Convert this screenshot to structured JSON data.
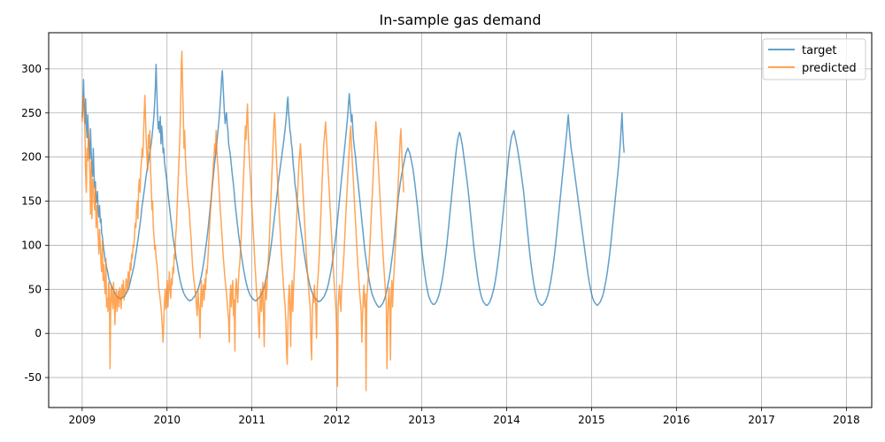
{
  "chart_data": {
    "type": "line",
    "title": "In-sample gas demand",
    "xlabel": "",
    "ylabel": "",
    "x_ticks": [
      "2009",
      "2010",
      "2011",
      "2012",
      "2013",
      "2014",
      "2015",
      "2016",
      "2017",
      "2018"
    ],
    "y_ticks": [
      "-50",
      "0",
      "50",
      "100",
      "150",
      "200",
      "250",
      "300"
    ],
    "xlim": [
      "2008-08-10",
      "2018-04-20"
    ],
    "ylim": [
      -84,
      341
    ],
    "grid": true,
    "legend_position": "top-right",
    "x_start": "2009-01-01",
    "x_step": "3 days",
    "series": [
      {
        "name": "target",
        "color": "#1f77b4",
        "opacity": 0.7,
        "values": [
          245,
          262,
          288,
          255,
          238,
          266,
          235,
          222,
          248,
          228,
          210,
          198,
          232,
          205,
          187,
          178,
          210,
          181,
          165,
          172,
          148,
          152,
          161,
          138,
          132,
          145,
          126,
          130,
          114,
          110,
          102,
          95,
          90,
          82,
          80,
          75,
          72,
          68,
          63,
          60,
          58,
          56,
          54,
          52,
          50,
          50,
          47,
          45,
          44,
          43,
          42,
          41,
          41,
          40,
          40,
          39,
          40,
          40,
          41,
          41,
          42,
          42,
          44,
          45,
          47,
          48,
          50,
          52,
          55,
          58,
          62,
          65,
          68,
          72,
          75,
          80,
          85,
          90,
          95,
          101,
          106,
          112,
          118,
          124,
          130,
          138,
          145,
          150,
          156,
          162,
          168,
          174,
          180,
          185,
          190,
          195,
          200,
          205,
          210,
          215,
          222,
          230,
          238,
          248,
          262,
          280,
          305,
          275,
          250,
          232,
          240,
          228,
          246,
          215,
          235,
          225,
          205,
          210,
          195,
          188,
          182,
          176,
          168,
          160,
          152,
          145,
          138,
          130,
          125,
          118,
          110,
          105,
          100,
          95,
          90,
          84,
          80,
          75,
          70,
          66,
          62,
          58,
          55,
          52,
          50,
          47,
          45,
          44,
          42,
          41,
          40,
          39,
          38,
          38,
          37,
          37,
          38,
          38,
          39,
          40,
          41,
          42,
          43,
          45,
          47,
          48,
          50,
          52,
          55,
          58,
          62,
          65,
          70,
          74,
          79,
          84,
          90,
          96,
          102,
          108,
          115,
          122,
          130,
          138,
          146,
          154,
          162,
          170,
          178,
          186,
          194,
          200,
          208,
          216,
          224,
          232,
          240,
          250,
          262,
          275,
          290,
          298,
          282,
          265,
          250,
          238,
          245,
          250,
          236,
          230,
          215,
          210,
          205,
          198,
          190,
          182,
          175,
          168,
          160,
          150,
          142,
          135,
          128,
          121,
          114,
          108,
          102,
          96,
          90,
          85,
          80,
          75,
          70,
          66,
          62,
          58,
          55,
          52,
          49,
          47,
          45,
          43,
          42,
          41,
          40,
          39,
          38,
          38,
          37,
          37,
          38,
          38,
          39,
          40,
          41,
          42,
          43,
          44,
          46,
          48,
          50,
          53,
          56,
          60,
          64,
          68,
          72,
          77,
          82,
          88,
          94,
          100,
          106,
          113,
          120,
          127,
          134,
          141,
          148,
          155,
          162,
          170,
          176,
          182,
          188,
          194,
          200,
          206,
          212,
          218,
          225,
          232,
          240,
          248,
          262,
          268,
          250,
          240,
          230,
          225,
          215,
          210,
          198,
          188,
          182,
          170,
          165,
          158,
          150,
          145,
          140,
          132,
          126,
          120,
          115,
          110,
          104,
          98,
          92,
          87,
          82,
          77,
          72,
          68,
          64,
          60,
          56,
          53,
          50,
          48,
          46,
          44,
          42,
          41,
          40,
          39,
          38,
          37,
          37,
          36,
          36,
          37,
          37,
          38,
          39,
          40,
          41,
          42,
          44,
          46,
          48,
          50,
          53,
          56,
          60,
          64,
          68,
          72,
          77,
          82,
          88,
          94,
          100,
          106,
          113,
          120,
          128,
          136,
          144,
          152,
          160,
          168,
          176,
          184,
          192,
          200,
          208,
          216,
          224,
          232,
          240,
          250,
          262,
          272,
          260,
          250,
          240,
          248,
          232,
          220,
          212,
          206,
          200,
          190,
          182,
          175,
          168,
          160,
          152,
          144,
          136,
          128,
          120,
          112,
          104,
          96,
          90,
          84,
          78,
          72,
          68,
          63,
          58,
          54,
          50,
          47,
          44,
          42,
          40,
          38,
          36,
          35,
          33,
          32,
          31,
          30,
          30,
          30,
          31,
          32,
          33,
          34,
          36,
          38,
          40,
          43,
          46,
          50,
          54,
          58,
          62,
          67,
          72,
          78,
          84,
          90,
          97,
          104,
          112,
          120,
          128,
          136,
          144,
          152,
          158,
          164,
          170,
          175,
          180,
          184,
          188,
          192,
          196,
          200,
          204,
          206,
          208,
          210,
          208,
          206,
          204,
          200,
          196,
          192,
          188,
          182,
          176,
          170,
          163,
          156,
          149,
          142,
          134,
          126,
          118,
          110,
          102,
          95,
          88,
          81,
          75,
          69,
          63,
          58,
          53,
          49,
          45,
          42,
          40,
          38,
          36,
          35,
          34,
          33,
          33,
          33,
          34,
          35,
          36,
          38,
          40,
          42,
          45,
          48,
          52,
          56,
          60,
          65,
          70,
          76,
          82,
          88,
          95,
          102,
          110,
          118,
          126,
          134,
          142,
          150,
          158,
          166,
          174,
          182,
          190,
          198,
          205,
          212,
          218,
          222,
          225,
          228,
          226,
          222,
          218,
          214,
          208,
          202,
          196,
          190,
          184,
          178,
          172,
          165,
          158,
          150,
          142,
          134,
          126,
          118,
          110,
          102,
          95,
          88,
          82,
          76,
          70,
          64,
          59,
          54,
          50,
          46,
          43,
          40,
          38,
          36,
          35,
          34,
          33,
          32,
          32,
          32,
          33,
          34,
          35,
          37,
          39,
          41,
          44,
          47,
          50,
          54,
          58,
          63,
          68,
          74,
          80,
          86,
          93,
          100,
          108,
          116,
          124,
          132,
          140,
          148,
          156,
          164,
          172,
          180,
          188,
          196,
          204,
          210,
          215,
          220,
          224,
          226,
          228,
          230,
          226,
          222,
          218,
          214,
          210,
          205,
          200,
          195,
          190,
          184,
          178,
          172,
          166,
          160,
          152,
          144,
          136,
          128,
          120,
          112,
          104,
          96,
          89,
          82,
          76,
          70,
          64,
          59,
          54,
          50,
          46,
          43,
          40,
          38,
          36,
          35,
          34,
          33,
          32,
          32,
          32,
          33,
          34,
          35,
          36,
          38,
          40,
          42,
          45,
          48,
          52,
          56,
          60,
          65,
          70,
          76,
          82,
          88,
          95,
          102,
          110,
          118,
          126,
          134,
          142,
          150,
          158,
          166,
          174,
          182,
          190,
          198,
          206,
          214,
          222,
          230,
          240,
          248,
          236,
          226,
          218,
          210,
          205,
          200,
          194,
          188,
          182,
          176,
          170,
          164,
          158,
          152,
          146,
          140,
          134,
          128,
          122,
          116,
          110,
          104,
          98,
          92,
          86,
          80,
          74,
          68,
          63,
          58,
          54,
          50,
          46,
          43,
          40,
          38,
          36,
          35,
          34,
          33,
          32,
          32,
          33,
          34,
          35,
          36,
          38,
          40,
          42,
          45,
          48,
          52,
          56,
          60,
          65,
          70,
          76,
          82,
          88,
          95,
          102,
          110,
          118,
          126,
          134,
          142,
          150,
          158,
          166,
          174,
          182,
          190,
          200,
          210,
          222,
          236,
          250,
          230,
          215,
          205
        ]
      },
      {
        "name": "predicted",
        "color": "#ff7f0e",
        "opacity": 0.7,
        "values": [
          240,
          255,
          270,
          250,
          230,
          180,
          160,
          210,
          196,
          230,
          200,
          182,
          135,
          195,
          130,
          175,
          170,
          150,
          140,
          165,
          120,
          145,
          125,
          110,
          90,
          118,
          100,
          80,
          70,
          105,
          60,
          78,
          55,
          45,
          85,
          30,
          40,
          25,
          58,
          50,
          -40,
          35,
          55,
          38,
          28,
          58,
          40,
          10,
          42,
          50,
          25,
          36,
          48,
          30,
          52,
          45,
          28,
          55,
          42,
          60,
          38,
          50,
          46,
          62,
          58,
          48,
          70,
          55,
          68,
          80,
          72,
          90,
          85,
          100,
          98,
          110,
          125,
          120,
          140,
          150,
          130,
          165,
          175,
          160,
          185,
          195,
          210,
          200,
          225,
          250,
          270,
          240,
          215,
          200,
          185,
          225,
          210,
          230,
          185,
          170,
          140,
          150,
          120,
          110,
          95,
          100,
          85,
          80,
          72,
          60,
          50,
          45,
          38,
          30,
          20,
          5,
          -10,
          12,
          35,
          50,
          28,
          42,
          60,
          30,
          48,
          70,
          50,
          40,
          62,
          55,
          75,
          68,
          90,
          85,
          110,
          120,
          140,
          160,
          180,
          200,
          220,
          250,
          300,
          320,
          280,
          250,
          210,
          230,
          200,
          185,
          170,
          160,
          150,
          145,
          135,
          120,
          110,
          95,
          80,
          70,
          62,
          55,
          48,
          42,
          30,
          20,
          50,
          35,
          25,
          -5,
          40,
          60,
          30,
          45,
          55,
          38,
          62,
          50,
          72,
          68,
          80,
          95,
          110,
          125,
          140,
          150,
          165,
          175,
          190,
          200,
          215,
          205,
          230,
          210,
          195,
          185,
          170,
          155,
          140,
          130,
          118,
          105,
          90,
          80,
          70,
          60,
          52,
          45,
          35,
          25,
          15,
          -10,
          40,
          55,
          30,
          48,
          60,
          20,
          38,
          -20,
          50,
          62,
          45,
          35,
          58,
          72,
          80,
          95,
          110,
          130,
          150,
          170,
          190,
          210,
          235,
          220,
          245,
          260,
          230,
          210,
          195,
          180,
          165,
          150,
          135,
          120,
          105,
          90,
          75,
          62,
          48,
          40,
          30,
          10,
          -5,
          35,
          50,
          25,
          40,
          58,
          20,
          -15,
          45,
          60,
          38,
          52,
          70,
          85,
          100,
          120,
          140,
          160,
          180,
          200,
          220,
          240,
          250,
          230,
          210,
          190,
          175,
          160,
          145,
          130,
          115,
          100,
          88,
          75,
          62,
          50,
          40,
          30,
          15,
          -20,
          -35,
          10,
          40,
          55,
          30,
          -15,
          45,
          60,
          25,
          50,
          68,
          82,
          100,
          120,
          140,
          160,
          180,
          195,
          205,
          215,
          200,
          185,
          170,
          155,
          140,
          125,
          110,
          95,
          82,
          70,
          58,
          48,
          38,
          28,
          -10,
          -30,
          20,
          45,
          35,
          55,
          40,
          30,
          -5,
          50,
          62,
          75,
          90,
          110,
          130,
          150,
          170,
          190,
          210,
          220,
          230,
          240,
          225,
          210,
          195,
          180,
          165,
          150,
          135,
          120,
          105,
          90,
          75,
          62,
          50,
          38,
          25,
          -5,
          -60,
          30,
          45,
          55,
          35,
          25,
          50,
          60,
          72,
          85,
          100,
          118,
          135,
          150,
          165,
          180,
          195,
          210,
          225,
          235,
          215,
          200,
          185,
          170,
          155,
          140,
          125,
          110,
          95,
          80,
          68,
          55,
          45,
          35,
          25,
          -10,
          20,
          40,
          55,
          30,
          45,
          -65,
          35,
          50,
          62,
          75,
          90,
          108,
          125,
          142,
          158,
          175,
          192,
          208,
          225,
          240,
          230,
          215,
          200,
          185,
          170,
          155,
          140,
          125,
          110,
          95,
          82,
          70,
          58,
          46,
          35,
          -40,
          10,
          38,
          52,
          28,
          -30,
          45,
          60,
          30,
          55,
          68,
          82,
          98,
          115,
          132,
          150,
          168,
          186,
          204,
          222,
          232,
          210,
          190,
          175,
          160
        ]
      }
    ]
  }
}
